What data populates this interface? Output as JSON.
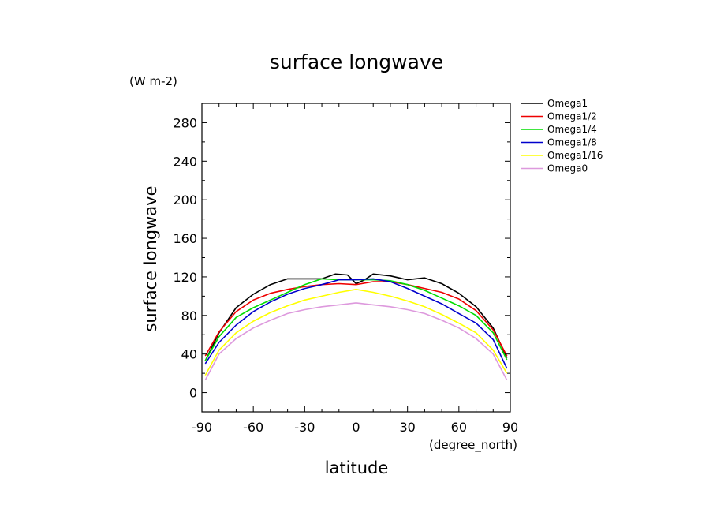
{
  "chart_data": {
    "type": "line",
    "title": "surface longwave",
    "units_label": "(W m-2)",
    "xlabel": "latitude",
    "x_units_label": "(degree_north)",
    "ylabel": "surface longwave",
    "xlim": [
      -90,
      90
    ],
    "ylim": [
      -20,
      300
    ],
    "x_ticks": [
      -90,
      -60,
      -30,
      0,
      30,
      60,
      90
    ],
    "x_tick_labels": [
      "-90",
      "-60",
      "-30",
      "0",
      "30",
      "60",
      "90"
    ],
    "y_ticks": [
      0,
      40,
      80,
      120,
      160,
      200,
      240,
      280
    ],
    "y_tick_labels": [
      "0",
      "40",
      "80",
      "120",
      "160",
      "200",
      "240",
      "280"
    ],
    "grid": false,
    "legend_position": "right",
    "series": [
      {
        "name": "Omega1",
        "color": "#000000",
        "x": [
          -88,
          -80,
          -70,
          -60,
          -50,
          -40,
          -30,
          -20,
          -12,
          -5,
          0,
          5,
          10,
          20,
          30,
          40,
          50,
          60,
          70,
          80,
          88
        ],
        "y": [
          33,
          62,
          88,
          102,
          112,
          118,
          118,
          118,
          123,
          122,
          113,
          117,
          123,
          121,
          117,
          119,
          113,
          103,
          89,
          67,
          36
        ]
      },
      {
        "name": "Omega1/2",
        "color": "#ee0000",
        "x": [
          -88,
          -80,
          -70,
          -60,
          -50,
          -40,
          -30,
          -20,
          -10,
          0,
          10,
          20,
          30,
          40,
          50,
          60,
          70,
          80,
          88
        ],
        "y": [
          38,
          63,
          84,
          96,
          103,
          107,
          110,
          112,
          113,
          112,
          115,
          115,
          112,
          108,
          104,
          97,
          85,
          65,
          38
        ]
      },
      {
        "name": "Omega1/4",
        "color": "#00dd00",
        "x": [
          -88,
          -80,
          -70,
          -60,
          -50,
          -40,
          -30,
          -20,
          -10,
          0,
          10,
          20,
          30,
          40,
          50,
          60,
          70,
          80,
          88
        ],
        "y": [
          33,
          58,
          78,
          88,
          96,
          104,
          112,
          118,
          117,
          117,
          117,
          116,
          112,
          106,
          98,
          90,
          80,
          62,
          34
        ]
      },
      {
        "name": "Omega1/8",
        "color": "#0000cc",
        "x": [
          -88,
          -80,
          -70,
          -60,
          -50,
          -40,
          -30,
          -20,
          -10,
          0,
          10,
          20,
          30,
          40,
          50,
          60,
          70,
          80,
          88
        ],
        "y": [
          30,
          52,
          70,
          84,
          94,
          102,
          108,
          112,
          117,
          117,
          118,
          115,
          108,
          100,
          92,
          82,
          72,
          55,
          25
        ]
      },
      {
        "name": "Omega1/16",
        "color": "#ffff00",
        "x": [
          -88,
          -80,
          -70,
          -60,
          -50,
          -40,
          -30,
          -20,
          -10,
          0,
          10,
          20,
          30,
          40,
          50,
          60,
          70,
          80,
          88
        ],
        "y": [
          18,
          44,
          62,
          74,
          83,
          90,
          96,
          100,
          104,
          107,
          104,
          100,
          95,
          89,
          81,
          72,
          62,
          44,
          20
        ]
      },
      {
        "name": "Omega0",
        "color": "#dd99dd",
        "x": [
          -88,
          -80,
          -70,
          -60,
          -50,
          -40,
          -30,
          -20,
          -10,
          0,
          10,
          20,
          30,
          40,
          50,
          60,
          70,
          80,
          88
        ],
        "y": [
          13,
          40,
          56,
          67,
          75,
          82,
          86,
          89,
          91,
          93,
          91,
          89,
          86,
          82,
          75,
          67,
          56,
          40,
          13
        ]
      }
    ]
  }
}
